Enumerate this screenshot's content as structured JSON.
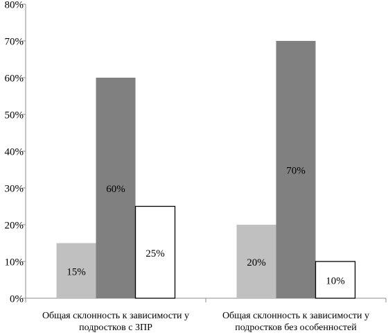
{
  "chart_data": {
    "type": "bar",
    "title": "",
    "xlabel": "",
    "ylabel": "",
    "ylim": [
      0,
      80
    ],
    "yticks": [
      0,
      10,
      20,
      30,
      40,
      50,
      60,
      70,
      80
    ],
    "ytick_labels": [
      "0%",
      "10%",
      "20%",
      "30%",
      "40%",
      "50%",
      "60%",
      "70%",
      "80%"
    ],
    "grid": false,
    "legend": "none",
    "categories": [
      [
        "Общая склонность к зависимости у",
        "подростков с ЗПР"
      ],
      [
        "Общая склонность к зависимости у",
        "подростков без особенностей"
      ]
    ],
    "series": [
      {
        "values": [
          15,
          20
        ],
        "labels": [
          "15%",
          "20%"
        ],
        "color": "#c0c0c0"
      },
      {
        "values": [
          60,
          70
        ],
        "labels": [
          "60%",
          "70%"
        ],
        "color": "#808080"
      },
      {
        "values": [
          25,
          10
        ],
        "labels": [
          "25%",
          "10%"
        ],
        "color": "#ffffff"
      }
    ]
  }
}
